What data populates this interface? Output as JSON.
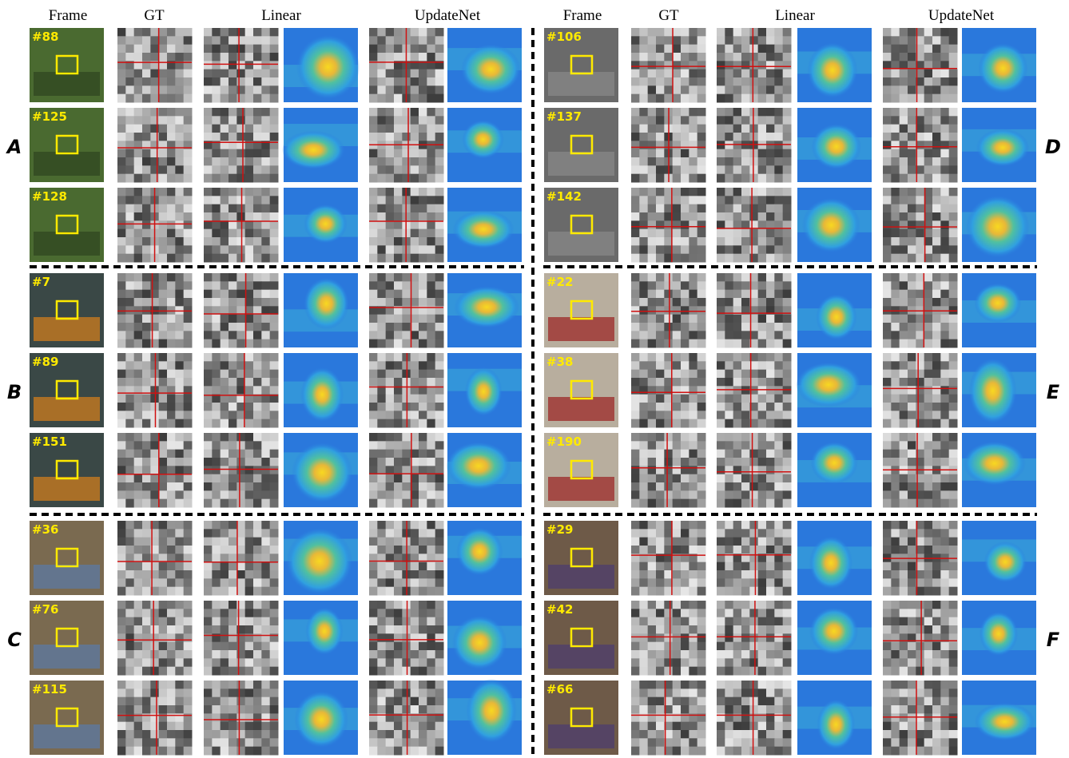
{
  "headers": [
    "Frame",
    "GT",
    "Linear",
    "UpdateNet"
  ],
  "panels": [
    {
      "label": "A",
      "frames": [
        "#88",
        "#125",
        "#128"
      ]
    },
    {
      "label": "B",
      "frames": [
        "#7",
        "#89",
        "#151"
      ]
    },
    {
      "label": "C",
      "frames": [
        "#36",
        "#76",
        "#115"
      ]
    },
    {
      "label": "D",
      "frames": [
        "#106",
        "#137",
        "#142"
      ]
    },
    {
      "label": "E",
      "frames": [
        "#22",
        "#38",
        "#190"
      ]
    },
    {
      "label": "F",
      "frames": [
        "#29",
        "#42",
        "#66"
      ]
    }
  ]
}
